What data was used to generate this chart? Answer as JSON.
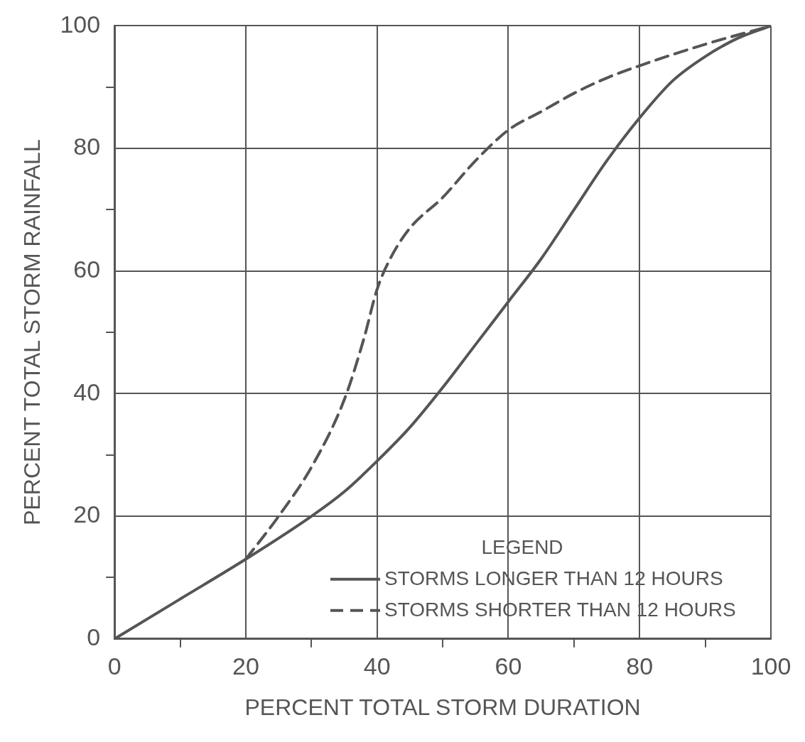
{
  "chart_data": {
    "type": "line",
    "xlabel": "PERCENT TOTAL STORM DURATION",
    "ylabel": "PERCENT TOTAL STORM RAINFALL",
    "legend_title": "LEGEND",
    "legend": "bottom right",
    "grid": true,
    "marker": "none",
    "xlim": [
      0,
      100
    ],
    "ylim": [
      0,
      100
    ],
    "xticks": [
      0,
      {
        "value": 10,
        "label": null
      },
      20,
      {
        "value": 30,
        "label": null
      },
      40,
      {
        "value": 50,
        "label": null
      },
      60,
      {
        "value": 70,
        "label": null
      },
      80,
      {
        "value": 90,
        "label": null
      },
      100
    ],
    "yticks": [
      0,
      {
        "value": 10,
        "label": null
      },
      20,
      {
        "value": 30,
        "label": null
      },
      40,
      {
        "value": 50,
        "label": null
      },
      60,
      {
        "value": 70,
        "label": null
      },
      80,
      {
        "value": 90,
        "label": null
      },
      100
    ],
    "series": [
      {
        "name": "STORMS LONGER THAN 12 HOURS",
        "color": "#555555",
        "line_style": "solid",
        "x": [
          0,
          10,
          20,
          30,
          35,
          40,
          45,
          50,
          55,
          60,
          65,
          70,
          75,
          80,
          85,
          90,
          95,
          100
        ],
        "values": [
          0,
          6.5,
          13,
          20,
          24,
          29,
          34.5,
          41,
          48,
          55,
          62,
          70,
          78,
          85,
          91,
          95,
          98,
          100
        ]
      },
      {
        "name": "STORMS SHORTER THAN 12 HOURS",
        "color": "#555555",
        "line_style": "dashed",
        "x": [
          20,
          25,
          30,
          35,
          38,
          40,
          42,
          45,
          50,
          55,
          60,
          65,
          70,
          75,
          80,
          90,
          100
        ],
        "values": [
          13,
          20,
          28,
          39,
          49,
          57,
          62,
          67,
          72,
          78,
          83,
          86,
          89,
          91.5,
          93.5,
          97,
          100
        ]
      }
    ]
  }
}
